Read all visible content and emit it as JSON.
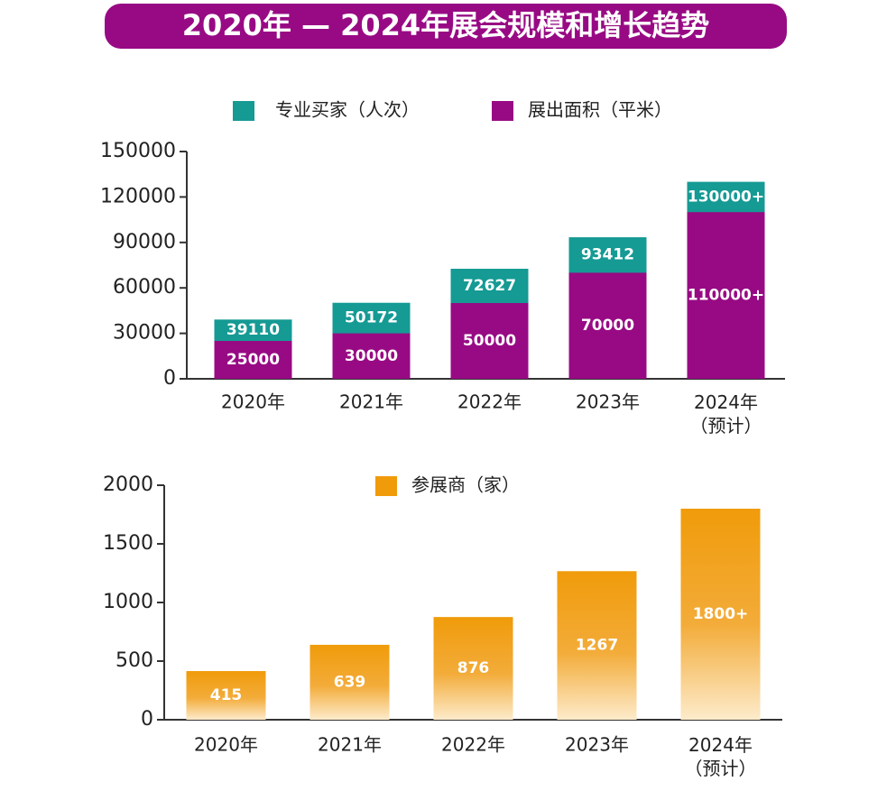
{
  "chart_data": [
    {
      "type": "bar",
      "barmode": "overlay",
      "title": "2020年 — 2024年展会规模和增长趋势",
      "categories": [
        "2020年",
        "2021年",
        "2022年",
        "2023年",
        "2024年\n（预计）"
      ],
      "series": [
        {
          "name": "专业买家（人次）",
          "color": "#159a94",
          "values": [
            39110,
            50172,
            72627,
            93412,
            130000
          ],
          "value_labels": [
            "39110",
            "50172",
            "72627",
            "93412",
            "130000+"
          ]
        },
        {
          "name": "展出面积（平米）",
          "color": "#980a84",
          "values": [
            25000,
            30000,
            50000,
            70000,
            110000
          ],
          "value_labels": [
            "25000",
            "30000",
            "50000",
            "70000",
            "110000+"
          ]
        }
      ],
      "ylim": [
        0,
        150000
      ],
      "yticks": [
        0,
        30000,
        60000,
        90000,
        120000,
        150000
      ]
    },
    {
      "type": "bar",
      "categories": [
        "2020年",
        "2021年",
        "2022年",
        "2023年",
        "2024年\n（预计）"
      ],
      "series": [
        {
          "name": "参展商（家）",
          "color": "#f09b0a",
          "values": [
            415,
            639,
            876,
            1267,
            1800
          ],
          "value_labels": [
            "415",
            "639",
            "876",
            "1267",
            "1800+"
          ]
        }
      ],
      "ylim": [
        0,
        2000
      ],
      "yticks": [
        0,
        500,
        1000,
        1500,
        2000
      ]
    }
  ]
}
